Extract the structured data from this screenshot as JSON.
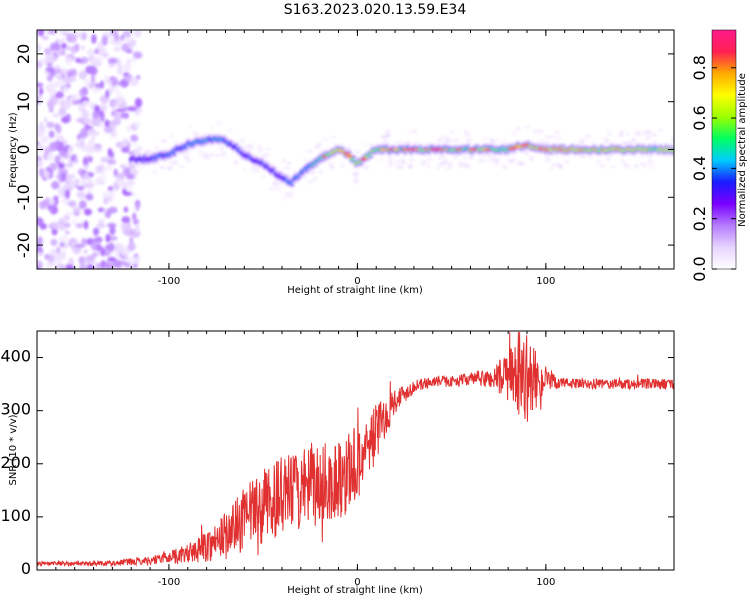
{
  "figure_title": "S163.2023.020.13.59.E34",
  "colors": {
    "snr_line": "#e03030",
    "colormap": [
      "#ffffff",
      "#e8d5ff",
      "#b57cff",
      "#7a00ff",
      "#1a1aff",
      "#00ccff",
      "#00ff60",
      "#9cff00",
      "#ffff00",
      "#ffaa00",
      "#ff2050",
      "#ff1a8c"
    ]
  },
  "chart_data": [
    {
      "type": "heatmap",
      "title": "",
      "xlabel": "Height of straight line (km)",
      "ylabel": "Frequency (Hz)",
      "xlim": [
        -170,
        168
      ],
      "ylim": [
        -25,
        25
      ],
      "x_ticks": [
        -100,
        0,
        100
      ],
      "x_tick_labels": [
        "-100",
        "0",
        "100"
      ],
      "y_ticks": [
        -20,
        -10,
        0,
        10,
        20
      ],
      "y_tick_labels": [
        "-20",
        "-10",
        "0",
        "10",
        "20"
      ],
      "colorbar": {
        "label": "Normalized spectral amplitude",
        "range": [
          0,
          0.95
        ],
        "ticks": [
          0.0,
          0.2,
          0.4,
          0.6,
          0.8
        ],
        "tick_labels": [
          "0.0",
          "0.2",
          "0.4",
          "0.6",
          "0.8"
        ]
      },
      "ridge": {
        "description": "dominant frequency track versus height",
        "x": [
          -120,
          -110,
          -100,
          -90,
          -80,
          -70,
          -60,
          -50,
          -40,
          -35,
          -30,
          -20,
          -10,
          -5,
          0,
          10,
          20,
          40,
          60,
          80,
          90,
          100,
          130,
          165
        ],
        "y": [
          -2,
          -2,
          -1,
          1,
          2,
          2,
          -1,
          -3,
          -6,
          -7,
          -5,
          -2,
          0,
          -1,
          -3,
          0,
          0,
          0,
          0,
          0,
          1,
          0,
          0,
          0
        ],
        "amplitude": [
          0.3,
          0.35,
          0.4,
          0.4,
          0.45,
          0.4,
          0.35,
          0.35,
          0.35,
          0.4,
          0.4,
          0.5,
          0.7,
          0.75,
          0.6,
          0.6,
          0.55,
          0.55,
          0.6,
          0.6,
          0.75,
          0.8,
          0.7,
          0.65
        ]
      }
    },
    {
      "type": "line",
      "title": "",
      "xlabel": "Height of straight line (km)",
      "ylabel": "SNR (10 * v/v)",
      "xlim": [
        -170,
        168
      ],
      "ylim": [
        0,
        450
      ],
      "x_ticks": [
        -100,
        0,
        100
      ],
      "x_tick_labels": [
        "-100",
        "0",
        "100"
      ],
      "y_ticks": [
        0,
        100,
        200,
        300,
        400
      ],
      "y_tick_labels": [
        "0",
        "100",
        "200",
        "300",
        "400"
      ],
      "series": [
        {
          "name": "",
          "x": [
            -170,
            -150,
            -130,
            -110,
            -100,
            -90,
            -80,
            -70,
            -60,
            -50,
            -40,
            -30,
            -20,
            -10,
            0,
            10,
            20,
            30,
            40,
            50,
            60,
            70,
            80,
            90,
            100,
            110,
            120,
            130,
            140,
            150,
            160,
            168
          ],
          "y": [
            12,
            12,
            13,
            18,
            25,
            30,
            45,
            65,
            95,
            120,
            140,
            150,
            160,
            170,
            200,
            260,
            320,
            345,
            355,
            355,
            360,
            360,
            365,
            360,
            355,
            352,
            350,
            350,
            350,
            350,
            350,
            350
          ],
          "noise": [
            4,
            4,
            5,
            8,
            12,
            18,
            30,
            45,
            60,
            70,
            75,
            75,
            80,
            80,
            75,
            55,
            25,
            12,
            10,
            10,
            12,
            18,
            50,
            85,
            20,
            10,
            10,
            10,
            10,
            10,
            10,
            10
          ]
        }
      ]
    }
  ]
}
